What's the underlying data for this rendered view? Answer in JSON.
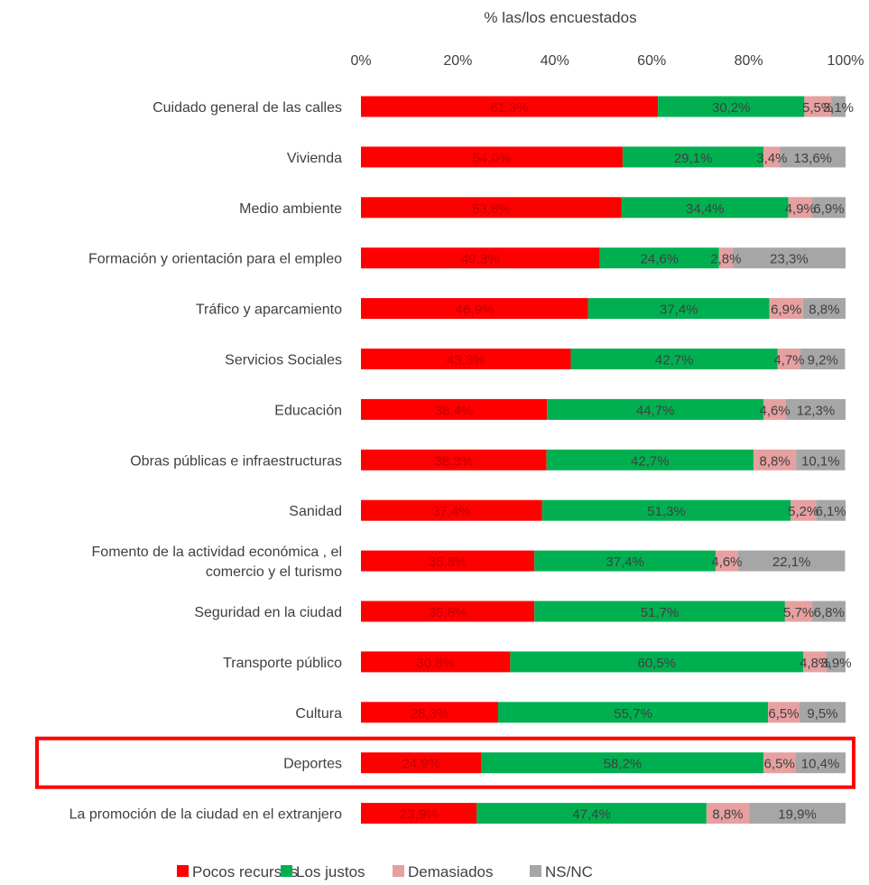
{
  "chart_data": {
    "type": "bar",
    "orientation": "horizontal",
    "stacked": true,
    "xlabel": "% las/los encuestados",
    "xlim": [
      0,
      100
    ],
    "xticks": [
      "0%",
      "20%",
      "40%",
      "60%",
      "80%",
      "100%"
    ],
    "legend_position": "bottom",
    "grid": false,
    "categories": [
      "Cuidado general de las calles",
      "Vivienda",
      "Medio ambiente",
      "Formación y orientación para el empleo",
      "Tráfico y aparcamiento",
      "Servicios Sociales",
      "Educación",
      "Obras públicas e infraestructuras",
      "Sanidad",
      "Fomento de la actividad económica , el comercio y el turismo",
      "Seguridad en la ciudad",
      "Transporte público",
      "Cultura",
      "Deportes",
      "La promoción de la ciudad en el extranjero"
    ],
    "category_lines": [
      [
        "Cuidado general de las calles"
      ],
      [
        "Vivienda"
      ],
      [
        "Medio ambiente"
      ],
      [
        "Formación y orientación para el empleo"
      ],
      [
        "Tráfico y aparcamiento"
      ],
      [
        "Servicios Sociales"
      ],
      [
        "Educación"
      ],
      [
        "Obras públicas e infraestructuras"
      ],
      [
        "Sanidad"
      ],
      [
        "Fomento de la actividad económica , el",
        "comercio y el turismo"
      ],
      [
        "Seguridad en la ciudad"
      ],
      [
        "Transporte público"
      ],
      [
        "Cultura"
      ],
      [
        "Deportes"
      ],
      [
        "La promoción de la ciudad en el extranjero"
      ]
    ],
    "series": [
      {
        "name": "Pocos recursos",
        "color": "#ff0000",
        "label_color": "#c00000",
        "values": [
          61.3,
          54.0,
          53.8,
          49.3,
          46.9,
          43.3,
          38.4,
          38.3,
          37.4,
          35.8,
          35.8,
          30.8,
          28.3,
          24.9,
          23.9
        ],
        "labels": [
          "61,3%",
          "54,0%",
          "53,8%",
          "49,3%",
          "46,9%",
          "43,3%",
          "38,4%",
          "38,3%",
          "37,4%",
          "35,8%",
          "35,8%",
          "30,8%",
          "28,3%",
          "24,9%",
          "23,9%"
        ]
      },
      {
        "name": "Los justos",
        "color": "#00b050",
        "label_color": "#404040",
        "values": [
          30.2,
          29.1,
          34.4,
          24.6,
          37.4,
          42.7,
          44.7,
          42.7,
          51.3,
          37.4,
          51.7,
          60.5,
          55.7,
          58.2,
          47.4
        ],
        "labels": [
          "30,2%",
          "29,1%",
          "34,4%",
          "24,6%",
          "37,4%",
          "42,7%",
          "44,7%",
          "42,7%",
          "51,3%",
          "37,4%",
          "51,7%",
          "60,5%",
          "55,7%",
          "58,2%",
          "47,4%"
        ]
      },
      {
        "name": "Demasiados",
        "color": "#e6a0a0",
        "label_color": "#404040",
        "values": [
          5.5,
          3.4,
          4.9,
          2.8,
          6.9,
          4.7,
          4.6,
          8.8,
          5.2,
          4.6,
          5.7,
          4.8,
          6.5,
          6.5,
          8.8
        ],
        "labels": [
          "5,5%",
          "3,4%",
          "4,9%",
          "2,8%",
          "6,9%",
          "4,7%",
          "4,6%",
          "8,8%",
          "5,2%",
          "4,6%",
          "5,7%",
          "4,8%",
          "6,5%",
          "6,5%",
          "8,8%"
        ]
      },
      {
        "name": "NS/NC",
        "color": "#a6a6a6",
        "label_color": "#404040",
        "values": [
          3.1,
          13.6,
          6.9,
          23.3,
          8.8,
          9.2,
          12.3,
          10.1,
          6.1,
          22.1,
          6.8,
          3.9,
          9.5,
          10.4,
          19.9
        ],
        "labels": [
          "3,1%",
          "13,6%",
          "6,9%",
          "23,3%",
          "8,8%",
          "9,2%",
          "12,3%",
          "10,1%",
          "6,1%",
          "22,1%",
          "6,8%",
          "3,9%",
          "9,5%",
          "10,4%",
          "19,9%"
        ]
      }
    ],
    "highlighted_category": "Deportes",
    "highlight_color": "#ff0000"
  }
}
